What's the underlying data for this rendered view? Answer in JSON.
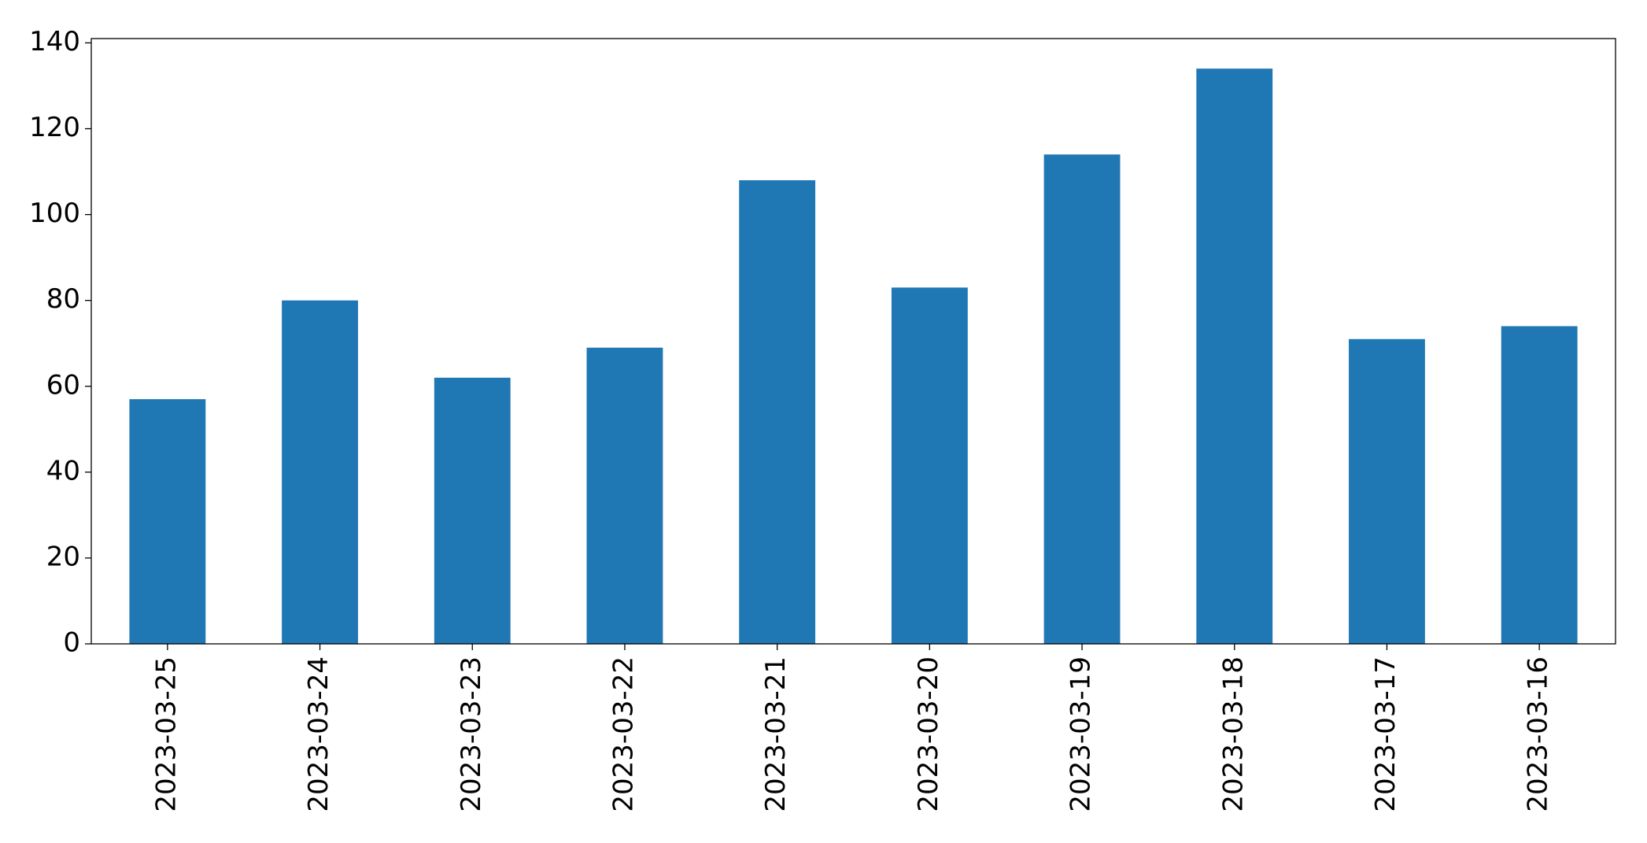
{
  "chart_data": {
    "type": "bar",
    "categories": [
      "2023-03-25",
      "2023-03-24",
      "2023-03-23",
      "2023-03-22",
      "2023-03-21",
      "2023-03-20",
      "2023-03-19",
      "2023-03-18",
      "2023-03-17",
      "2023-03-16"
    ],
    "values": [
      57,
      80,
      62,
      69,
      108,
      83,
      114,
      134,
      71,
      74
    ],
    "color": "#1f77b4",
    "ylim": [
      0,
      141
    ],
    "yticks": [
      0,
      20,
      40,
      60,
      80,
      100,
      120,
      140
    ],
    "grid": false
  }
}
